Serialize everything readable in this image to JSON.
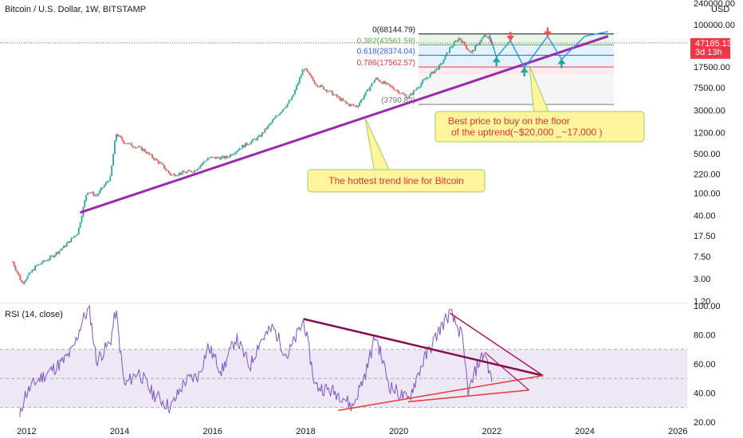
{
  "header": {
    "title": "Bitcoin / U.S. Dollar, 1W, BITSTAMP",
    "currency": "USD"
  },
  "price_axis": {
    "ticks": [
      "240000.00",
      "100000.00",
      "40000.00",
      "17500.00",
      "7500.00",
      "3000.00",
      "1200.00",
      "500.00",
      "220.00",
      "100.00",
      "40.00",
      "17.50",
      "7.50",
      "3.00",
      "1.20"
    ],
    "current_price": "47185.13",
    "countdown": "3d 13h",
    "current_price_color": "#f23645"
  },
  "rsi_panel": {
    "label": "RSI (14, close)",
    "ticks": [
      "100.00",
      "80.00",
      "60.00",
      "40.00",
      "20.00"
    ],
    "line_color": "#7e57c2",
    "band_fill": "#ede7f6"
  },
  "time_axis": {
    "ticks": [
      "2012",
      "2014",
      "2016",
      "2018",
      "2020",
      "2022",
      "2024",
      "2026"
    ]
  },
  "fibonacci": {
    "levels": [
      {
        "label": "0(68144.79)",
        "price": 68144.79,
        "color": "#131722"
      },
      {
        "label": "0.382(43561.58)",
        "price": 43561.58,
        "color": "#4caf50"
      },
      {
        "label": "0.618(28374.04)",
        "price": 28374.04,
        "color": "#2962ff"
      },
      {
        "label": "0.786(17562.57)",
        "price": 17562.57,
        "color": "#f23645"
      },
      {
        "label": "(3790.82)",
        "price": 3790.82,
        "color": "#787b86"
      }
    ]
  },
  "annotations": {
    "trendline_callout": "The hottest trend line for Bitcoin",
    "buy_callout_line1": "Best price to buy on the floor",
    "buy_callout_line2": "of the uptrend(~$20,000 _~17,000 )",
    "callout_fill": "#fff59d",
    "callout_border": "#9ccc65",
    "trendline_color": "#9c27b0"
  },
  "chart_data": [
    {
      "type": "candlestick",
      "title": "Bitcoin / U.S. Dollar, 1W, BITSTAMP",
      "scale": "log",
      "ylim": [
        1.2,
        240000
      ],
      "xlim": [
        2011.6,
        2026.2
      ],
      "points": [
        [
          2011.7,
          6
        ],
        [
          2011.9,
          2.5
        ],
        [
          2012.2,
          5
        ],
        [
          2012.5,
          7
        ],
        [
          2012.8,
          11
        ],
        [
          2013.1,
          20
        ],
        [
          2013.3,
          110
        ],
        [
          2013.5,
          90
        ],
        [
          2013.8,
          190
        ],
        [
          2013.92,
          1150
        ],
        [
          2014.1,
          800
        ],
        [
          2014.5,
          600
        ],
        [
          2014.9,
          320
        ],
        [
          2015.1,
          210
        ],
        [
          2015.6,
          250
        ],
        [
          2015.9,
          420
        ],
        [
          2016.3,
          430
        ],
        [
          2016.6,
          650
        ],
        [
          2017.0,
          1000
        ],
        [
          2017.4,
          2500
        ],
        [
          2017.7,
          4800
        ],
        [
          2017.96,
          17000
        ],
        [
          2018.2,
          9000
        ],
        [
          2018.5,
          6500
        ],
        [
          2018.9,
          3800
        ],
        [
          2019.1,
          3500
        ],
        [
          2019.5,
          11000
        ],
        [
          2019.9,
          7200
        ],
        [
          2020.2,
          5000
        ],
        [
          2020.5,
          9400
        ],
        [
          2020.9,
          19000
        ],
        [
          2021.1,
          38000
        ],
        [
          2021.3,
          58000
        ],
        [
          2021.55,
          31000
        ],
        [
          2021.85,
          65000
        ],
        [
          2022.0,
          47185.13
        ]
      ],
      "annotations": [
        "0(68144.79)",
        "0.382(43561.58)",
        "0.618(28374.04)",
        "0.786(17562.57)",
        "(3790.82)"
      ]
    },
    {
      "type": "line",
      "title": "RSI (14, close)",
      "ylim": [
        20,
        100
      ],
      "series": [
        {
          "values": [
            [
              2011.85,
              22
            ],
            [
              2011.95,
              38
            ],
            [
              2012.2,
              48
            ],
            [
              2012.5,
              55
            ],
            [
              2012.8,
              62
            ],
            [
              2013.0,
              70
            ],
            [
              2013.2,
              90
            ],
            [
              2013.35,
              98
            ],
            [
              2013.5,
              62
            ],
            [
              2013.8,
              75
            ],
            [
              2013.92,
              97
            ],
            [
              2014.1,
              45
            ],
            [
              2014.4,
              55
            ],
            [
              2014.7,
              40
            ],
            [
              2014.9,
              35
            ],
            [
              2015.1,
              30
            ],
            [
              2015.4,
              48
            ],
            [
              2015.7,
              52
            ],
            [
              2015.9,
              72
            ],
            [
              2016.2,
              55
            ],
            [
              2016.5,
              78
            ],
            [
              2016.8,
              58
            ],
            [
              2017.0,
              75
            ],
            [
              2017.3,
              85
            ],
            [
              2017.6,
              65
            ],
            [
              2017.96,
              90
            ],
            [
              2018.2,
              45
            ],
            [
              2018.5,
              42
            ],
            [
              2018.8,
              38
            ],
            [
              2019.0,
              30
            ],
            [
              2019.3,
              55
            ],
            [
              2019.5,
              80
            ],
            [
              2019.8,
              45
            ],
            [
              2020.2,
              35
            ],
            [
              2020.5,
              60
            ],
            [
              2020.9,
              85
            ],
            [
              2021.1,
              95
            ],
            [
              2021.35,
              80
            ],
            [
              2021.5,
              40
            ],
            [
              2021.7,
              60
            ],
            [
              2021.85,
              68
            ],
            [
              2022.0,
              48
            ]
          ]
        }
      ],
      "reference_lines": [
        70,
        50,
        30
      ]
    }
  ]
}
